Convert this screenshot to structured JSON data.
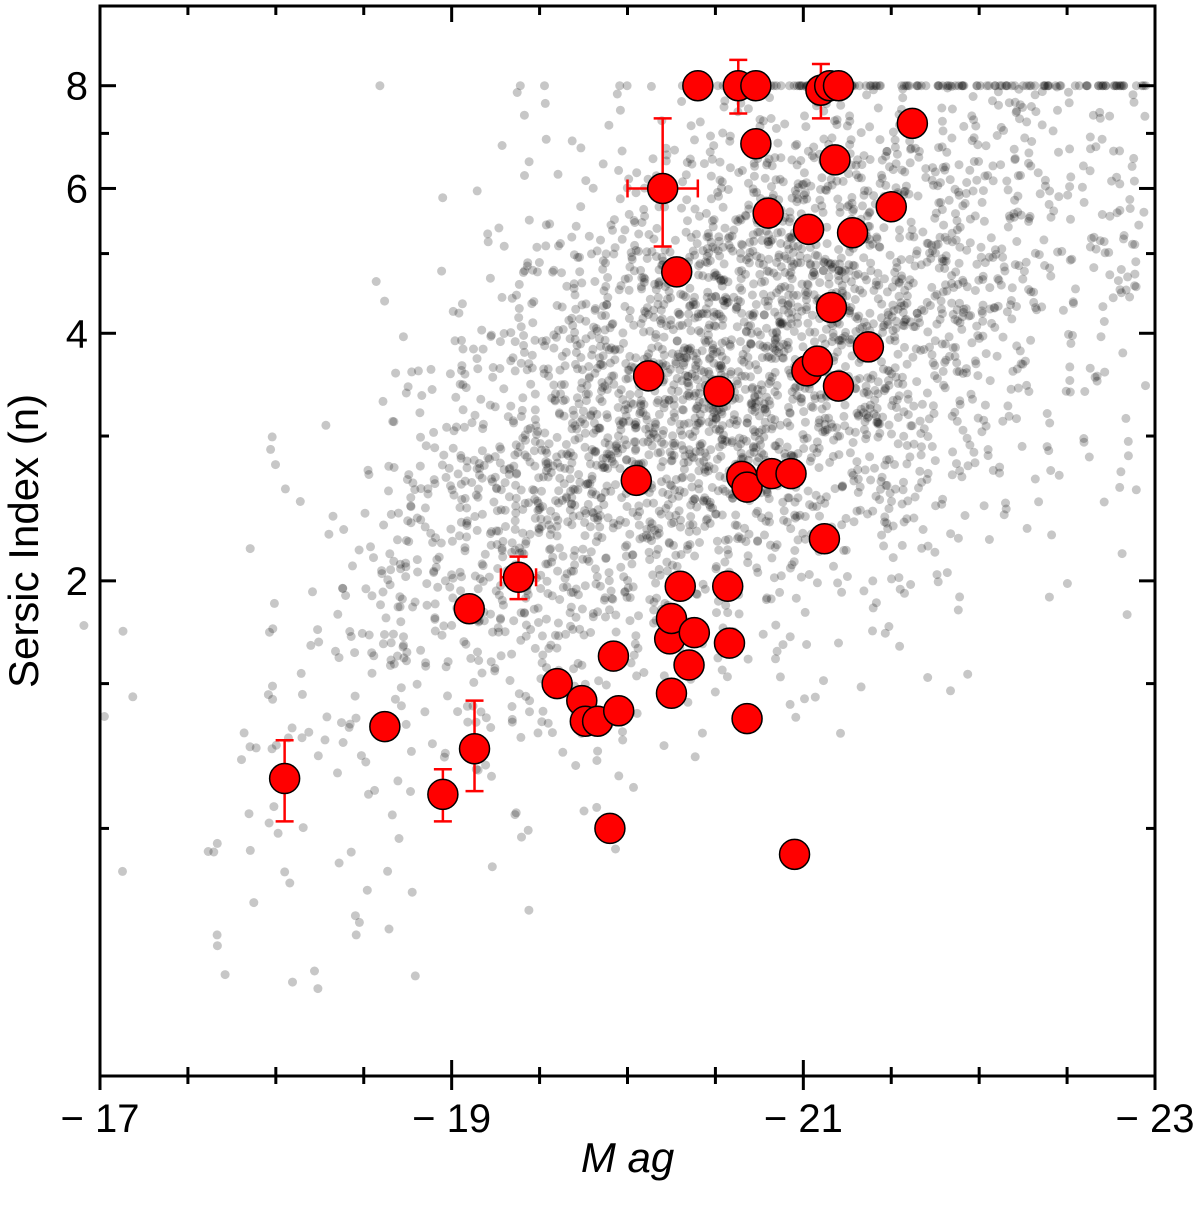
{
  "chart_data": {
    "type": "scatter",
    "xlabel": "M ag",
    "ylabel": "Sersic Index (n)",
    "xlim": [
      -17,
      -23
    ],
    "ylim": [
      0.5,
      10
    ],
    "y_scale": "log",
    "x_ticks": [
      {
        "value": -17,
        "label": "− 17"
      },
      {
        "value": -19,
        "label": "− 19"
      },
      {
        "value": -21,
        "label": "− 21"
      },
      {
        "value": -23,
        "label": "− 23"
      }
    ],
    "x_minor_ticks": [
      -17.5,
      -18,
      -18.5,
      -19.5,
      -20,
      -20.5,
      -21.5,
      -22,
      -22.5
    ],
    "y_ticks": [
      {
        "value": 2,
        "label": "2"
      },
      {
        "value": 4,
        "label": "4"
      },
      {
        "value": 6,
        "label": "6"
      },
      {
        "value": 8,
        "label": "8"
      }
    ],
    "y_minor_ticks": [
      1,
      1.5,
      3,
      5,
      7
    ],
    "background_sample": {
      "description_count": 3500,
      "color": "#000000",
      "opacity": 0.22,
      "upper_limit_value": 8
    },
    "highlight_color": "#ff0000",
    "highlight": [
      {
        "x": -18.05,
        "y": 1.15,
        "yerr": [
          0.13,
          0.13
        ]
      },
      {
        "x": -18.62,
        "y": 1.33,
        "yerr": [
          0.04,
          0.04
        ]
      },
      {
        "x": -18.95,
        "y": 1.1,
        "yerr": [
          0.08,
          0.08
        ]
      },
      {
        "x": -19.13,
        "y": 1.25,
        "yerr": [
          0.14,
          0.18
        ]
      },
      {
        "x": -19.1,
        "y": 1.85
      },
      {
        "x": -19.38,
        "y": 2.02,
        "yerr": [
          0.12,
          0.12
        ],
        "xerr": [
          0.1,
          0.1
        ]
      },
      {
        "x": -19.6,
        "y": 1.5
      },
      {
        "x": -19.74,
        "y": 1.43
      },
      {
        "x": -19.76,
        "y": 1.35
      },
      {
        "x": -19.83,
        "y": 1.35
      },
      {
        "x": -19.9,
        "y": 1.0
      },
      {
        "x": -19.92,
        "y": 1.62
      },
      {
        "x": -19.95,
        "y": 1.39
      },
      {
        "x": -20.05,
        "y": 2.65
      },
      {
        "x": -20.12,
        "y": 3.55
      },
      {
        "x": -20.2,
        "y": 6.0,
        "yerr": [
          0.9,
          1.3
        ],
        "xerr": [
          0.2,
          0.2
        ]
      },
      {
        "x": -20.24,
        "y": 1.7
      },
      {
        "x": -20.25,
        "y": 1.8
      },
      {
        "x": -20.25,
        "y": 1.46
      },
      {
        "x": -20.28,
        "y": 4.75
      },
      {
        "x": -20.3,
        "y": 1.97
      },
      {
        "x": -20.35,
        "y": 1.58
      },
      {
        "x": -20.38,
        "y": 1.73
      },
      {
        "x": -20.4,
        "y": 8.0
      },
      {
        "x": -20.52,
        "y": 3.4
      },
      {
        "x": -20.57,
        "y": 1.97
      },
      {
        "x": -20.58,
        "y": 1.68
      },
      {
        "x": -20.63,
        "y": 8.0,
        "yerr": [
          0.6,
          0.6
        ]
      },
      {
        "x": -20.65,
        "y": 2.68
      },
      {
        "x": -20.68,
        "y": 1.36
      },
      {
        "x": -20.68,
        "y": 2.6
      },
      {
        "x": -20.73,
        "y": 6.8
      },
      {
        "x": -20.73,
        "y": 8.0
      },
      {
        "x": -20.8,
        "y": 5.6
      },
      {
        "x": -20.82,
        "y": 2.7
      },
      {
        "x": -20.93,
        "y": 2.7
      },
      {
        "x": -20.95,
        "y": 0.93
      },
      {
        "x": -21.02,
        "y": 3.6
      },
      {
        "x": -21.03,
        "y": 5.35
      },
      {
        "x": -21.08,
        "y": 3.7
      },
      {
        "x": -21.1,
        "y": 7.9,
        "yerr": [
          0.6,
          0.6
        ]
      },
      {
        "x": -21.12,
        "y": 2.25
      },
      {
        "x": -21.15,
        "y": 8.0
      },
      {
        "x": -21.16,
        "y": 4.3
      },
      {
        "x": -21.18,
        "y": 6.5
      },
      {
        "x": -21.2,
        "y": 3.45
      },
      {
        "x": -21.2,
        "y": 8.0
      },
      {
        "x": -21.28,
        "y": 5.3
      },
      {
        "x": -21.37,
        "y": 3.85
      },
      {
        "x": -21.5,
        "y": 5.7
      },
      {
        "x": -21.62,
        "y": 7.2
      }
    ]
  }
}
